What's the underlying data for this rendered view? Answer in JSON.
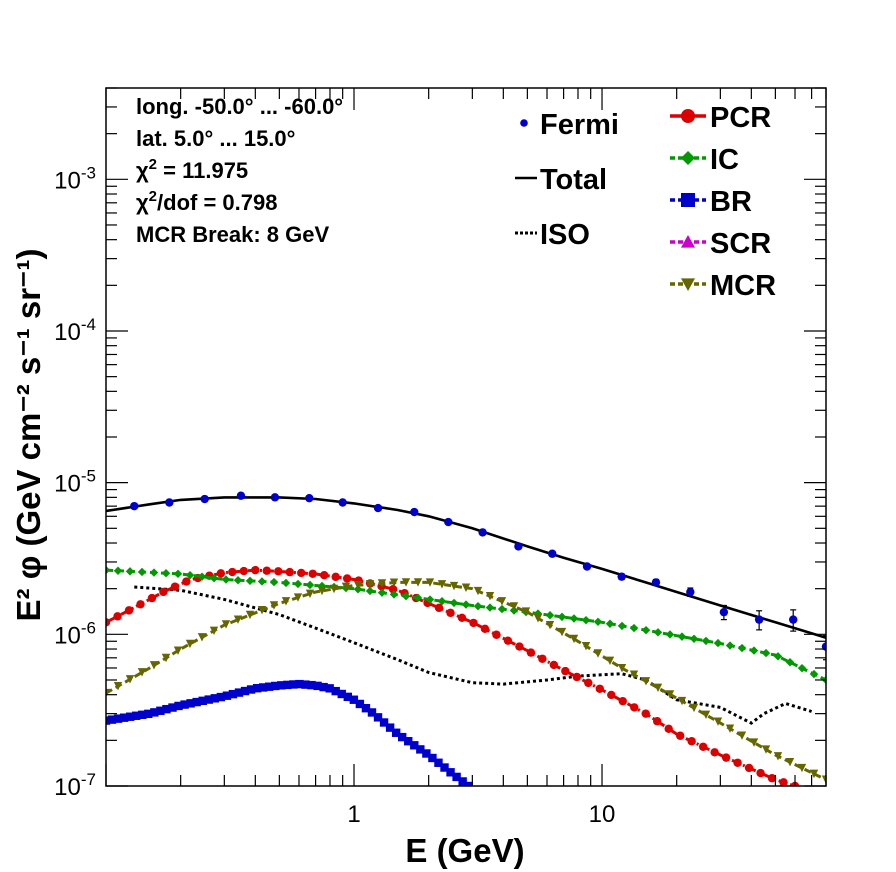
{
  "chart_data": {
    "type": "line",
    "log_x": true,
    "log_y": true,
    "xlabel": "E (GeV)",
    "ylabel": "E² φ (GeV cm⁻² s⁻¹ sr⁻¹)",
    "xlim": [
      0.1,
      80
    ],
    "ylim": [
      1e-07,
      0.004
    ],
    "x_tick_labels": [
      {
        "value": 1,
        "label": "1"
      },
      {
        "value": 10,
        "label": "10"
      }
    ],
    "y_tick_labels": [
      {
        "value": 1e-07,
        "base": "10",
        "exp": "-7"
      },
      {
        "value": 1e-06,
        "base": "10",
        "exp": "-6"
      },
      {
        "value": 1e-05,
        "base": "10",
        "exp": "-5"
      },
      {
        "value": 0.0001,
        "base": "10",
        "exp": "-4"
      },
      {
        "value": 0.001,
        "base": "10",
        "exp": "-3"
      }
    ],
    "info_lines": [
      "long. -50.0° ... -60.0°",
      "lat. 5.0° ... 15.0°",
      "χ² = 11.975",
      "χ²/dof = 0.798",
      "MCR Break:  8 GeV"
    ],
    "legend_left": [
      {
        "label": "Fermi",
        "marker": "circle-small",
        "color": "#0000cc"
      },
      {
        "label": "Total",
        "marker": "line",
        "color": "#000000"
      },
      {
        "label": "ISO",
        "marker": "dotted",
        "color": "#000000"
      }
    ],
    "legend_right": [
      {
        "label": "PCR",
        "marker": "circle",
        "color": "#dd0000"
      },
      {
        "label": "IC",
        "marker": "diamond",
        "color": "#009900"
      },
      {
        "label": "BR",
        "marker": "square",
        "color": "#0000cc"
      },
      {
        "label": "SCR",
        "marker": "triangle-up",
        "color": "#cc00cc"
      },
      {
        "label": "MCR",
        "marker": "triangle-down",
        "color": "#666600"
      }
    ],
    "fermi": {
      "x": [
        0.13,
        0.18,
        0.25,
        0.35,
        0.48,
        0.66,
        0.9,
        1.25,
        1.75,
        2.4,
        3.3,
        4.6,
        6.3,
        8.7,
        12,
        16.5,
        22.7,
        31,
        43,
        59,
        80
      ],
      "y": [
        7e-06,
        7.4e-06,
        7.8e-06,
        8.2e-06,
        8e-06,
        7.9e-06,
        7.4e-06,
        6.8e-06,
        6.4e-06,
        5.5e-06,
        4.7e-06,
        3.8e-06,
        3.4e-06,
        2.8e-06,
        2.4e-06,
        2.2e-06,
        1.9e-06,
        1.4e-06,
        1.25e-06,
        1.25e-06,
        8.3e-07
      ],
      "err": [
        0,
        0,
        0,
        0,
        0,
        0,
        0,
        0,
        0,
        0,
        0,
        0,
        0,
        0,
        1e-07,
        1e-07,
        1.2e-07,
        1.5e-07,
        1.8e-07,
        2e-07,
        1.5e-07
      ]
    },
    "series": [
      {
        "name": "Total",
        "color": "#000000",
        "style": "solid",
        "marker": "none",
        "x": [
          0.1,
          0.15,
          0.2,
          0.3,
          0.5,
          0.7,
          1,
          1.5,
          2,
          3,
          5,
          7,
          10,
          15,
          20,
          30,
          50,
          80
        ],
        "y": [
          6.5e-06,
          7.2e-06,
          7.7e-06,
          8e-06,
          8e-06,
          7.8e-06,
          7.3e-06,
          6.6e-06,
          6e-06,
          5e-06,
          3.8e-06,
          3.2e-06,
          2.7e-06,
          2.2e-06,
          1.9e-06,
          1.55e-06,
          1.2e-06,
          9.5e-07
        ]
      },
      {
        "name": "ISO",
        "color": "#000000",
        "style": "dotted",
        "marker": "none",
        "x": [
          0.13,
          0.2,
          0.3,
          0.5,
          0.7,
          1,
          1.5,
          2,
          3,
          4,
          6,
          8,
          12,
          15,
          20,
          30,
          40,
          45,
          55,
          70
        ],
        "y": [
          2.05e-06,
          1.95e-06,
          1.7e-06,
          1.35e-06,
          1.1e-06,
          8.8e-07,
          6.8e-07,
          5.6e-07,
          4.8e-07,
          4.7e-07,
          5e-07,
          5.3e-07,
          5.5e-07,
          5e-07,
          3.7e-07,
          3.3e-07,
          2.6e-07,
          3e-07,
          3.5e-07,
          3.1e-07
        ]
      },
      {
        "name": "PCR",
        "color": "#dd0000",
        "style": "dashdot",
        "marker": "circle",
        "x": [
          0.1,
          0.13,
          0.17,
          0.22,
          0.3,
          0.4,
          0.5,
          0.7,
          1,
          1.5,
          2,
          3,
          5,
          7,
          10,
          15,
          20,
          30,
          50,
          60
        ],
        "y": [
          1.2e-06,
          1.5e-06,
          1.9e-06,
          2.3e-06,
          2.55e-06,
          2.65e-06,
          2.6e-06,
          2.5e-06,
          2.3e-06,
          1.95e-06,
          1.6e-06,
          1.2e-06,
          7.8e-07,
          5.8e-07,
          4.3e-07,
          3e-07,
          2.2e-07,
          1.6e-07,
          1.1e-07,
          1e-07
        ]
      },
      {
        "name": "IC",
        "color": "#009900",
        "style": "dashed",
        "marker": "diamond",
        "x": [
          0.1,
          0.2,
          0.3,
          0.5,
          1,
          2,
          3,
          5,
          10,
          20,
          30,
          50,
          80
        ],
        "y": [
          2.65e-06,
          2.5e-06,
          2.3e-06,
          2.2e-06,
          2e-06,
          1.7e-06,
          1.55e-06,
          1.4e-06,
          1.2e-06,
          9.8e-07,
          8.7e-07,
          7.3e-07,
          5e-07
        ]
      },
      {
        "name": "BR",
        "color": "#0000cc",
        "style": "dashed",
        "marker": "square",
        "x": [
          0.1,
          0.15,
          0.2,
          0.3,
          0.4,
          0.5,
          0.6,
          0.7,
          0.8,
          1,
          1.2,
          1.5,
          2,
          2.5,
          2.9
        ],
        "y": [
          2.7e-07,
          3e-07,
          3.4e-07,
          3.9e-07,
          4.4e-07,
          4.6e-07,
          4.7e-07,
          4.6e-07,
          4.4e-07,
          3.7e-07,
          3e-07,
          2.2e-07,
          1.6e-07,
          1.2e-07,
          1e-07
        ]
      },
      {
        "name": "MCR",
        "color": "#666600",
        "style": "dashed",
        "marker": "triangle-down",
        "x": [
          0.1,
          0.15,
          0.2,
          0.3,
          0.5,
          0.7,
          1,
          1.5,
          2,
          3,
          5,
          8,
          12,
          20,
          30,
          50,
          80
        ],
        "y": [
          4.1e-07,
          6e-07,
          8e-07,
          1.15e-06,
          1.6e-06,
          1.9e-06,
          2.1e-06,
          2.2e-06,
          2.2e-06,
          2e-06,
          1.4e-06,
          9e-07,
          6e-07,
          3.8e-07,
          2.6e-07,
          1.6e-07,
          1.1e-07
        ]
      }
    ]
  }
}
